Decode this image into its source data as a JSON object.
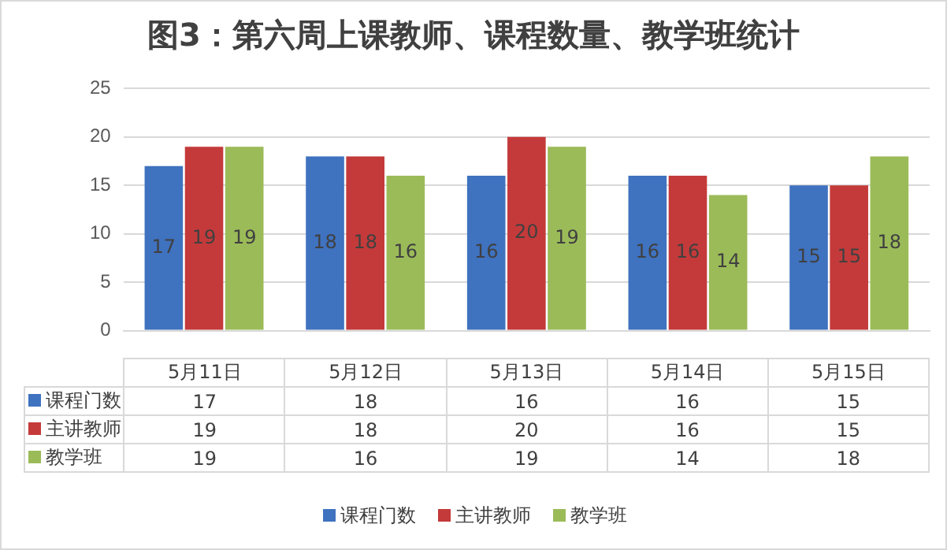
{
  "chart_data": {
    "type": "bar",
    "title": "图3：第六周上课教师、课程数量、教学班统计",
    "categories": [
      "5月11日",
      "5月12日",
      "5月13日",
      "5月14日",
      "5月15日"
    ],
    "series": [
      {
        "name": "课程门数",
        "color": "#3f72bf",
        "values": [
          17,
          18,
          16,
          16,
          15
        ]
      },
      {
        "name": "主讲教师",
        "color": "#c43a3a",
        "values": [
          19,
          18,
          20,
          16,
          15
        ]
      },
      {
        "name": "教学班",
        "color": "#9bbb59",
        "values": [
          19,
          16,
          19,
          14,
          18
        ]
      }
    ],
    "annotations": [
      "17",
      "18",
      "16",
      "16",
      "15",
      "19",
      "18",
      "20",
      "16",
      "15",
      "19",
      "16",
      "19",
      "14",
      "18"
    ],
    "ylim": [
      0,
      25
    ],
    "yticks": [
      0,
      5,
      10,
      15,
      20,
      25
    ],
    "grid": "y",
    "legend": "bottom",
    "data_labels": true
  }
}
